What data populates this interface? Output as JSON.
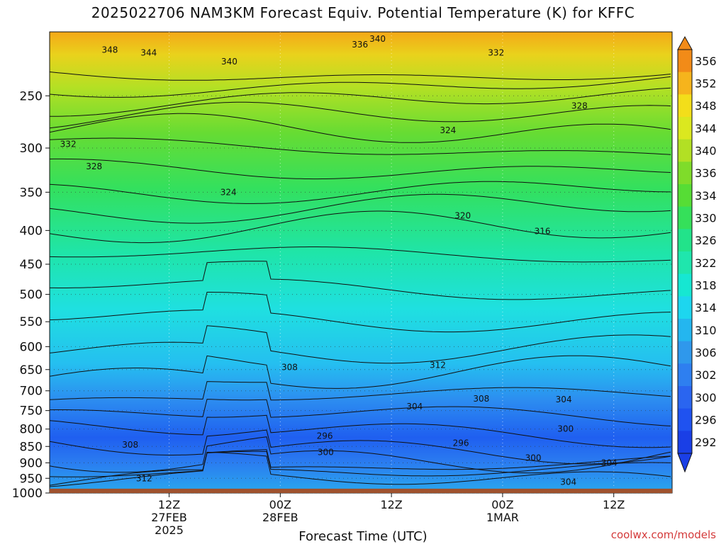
{
  "title": "2025022706 NAM3KM Forecast Equiv. Potential Temperature (K) for KFFC",
  "credit": "coolwx.com/models",
  "chart_data": {
    "type": "heatmap",
    "title": "2025022706 NAM3KM Forecast Equiv. Potential Temperature (K) for KFFC",
    "xlabel": "Forecast Time (UTC)",
    "ylabel": "",
    "y_log_pressure": true,
    "ylim": [
      1000,
      200
    ],
    "y_ticks": [
      250,
      300,
      350,
      400,
      450,
      500,
      550,
      600,
      650,
      700,
      750,
      800,
      850,
      900,
      950,
      1000
    ],
    "xlim_hours": [
      -6.9,
      60.3
    ],
    "x_ticks": [
      {
        "hour": 6,
        "lines": [
          "12Z",
          "27FEB",
          "2025"
        ]
      },
      {
        "hour": 18,
        "lines": [
          "00Z",
          "28FEB"
        ]
      },
      {
        "hour": 30,
        "lines": [
          "12Z"
        ]
      },
      {
        "hour": 42,
        "lines": [
          "00Z",
          "1MAR"
        ]
      },
      {
        "hour": 54,
        "lines": [
          "12Z"
        ]
      }
    ],
    "colorbar": {
      "labels": [
        292,
        296,
        300,
        302,
        306,
        310,
        314,
        318,
        322,
        326,
        330,
        334,
        336,
        340,
        344,
        348,
        352,
        356
      ],
      "colors": [
        "#1a3fe6",
        "#1f52f0",
        "#2a65f0",
        "#2e7ff0",
        "#2f98ec",
        "#24b6ef",
        "#1dd6ef",
        "#16e7d2",
        "#1fe6ad",
        "#22e38a",
        "#35e05a",
        "#56dd35",
        "#7fdc2a",
        "#b2e024",
        "#dbe81f",
        "#f3de1a",
        "#f6b41c",
        "#f28b18"
      ]
    },
    "contour_labels": [
      {
        "text": "348",
        "x": -0.4,
        "p": 213
      },
      {
        "text": "344",
        "x": 3.8,
        "p": 215
      },
      {
        "text": "340",
        "x": 12.5,
        "p": 222
      },
      {
        "text": "340",
        "x": 28.5,
        "p": 205
      },
      {
        "text": "336",
        "x": 26.6,
        "p": 209
      },
      {
        "text": "332",
        "x": 41.3,
        "p": 215
      },
      {
        "text": "328",
        "x": 50.3,
        "p": 259
      },
      {
        "text": "324",
        "x": 36.1,
        "p": 282
      },
      {
        "text": "332",
        "x": -4.9,
        "p": 296
      },
      {
        "text": "328",
        "x": -2.1,
        "p": 320
      },
      {
        "text": "324",
        "x": 12.4,
        "p": 350
      },
      {
        "text": "320",
        "x": 37.7,
        "p": 380
      },
      {
        "text": "316",
        "x": 46.3,
        "p": 401
      },
      {
        "text": "308",
        "x": 19.0,
        "p": 645
      },
      {
        "text": "312",
        "x": 35.0,
        "p": 640
      },
      {
        "text": "304",
        "x": 32.5,
        "p": 740
      },
      {
        "text": "308",
        "x": 39.7,
        "p": 720
      },
      {
        "text": "304",
        "x": 48.6,
        "p": 722
      },
      {
        "text": "300",
        "x": 48.8,
        "p": 800
      },
      {
        "text": "296",
        "x": 22.8,
        "p": 820
      },
      {
        "text": "296",
        "x": 37.5,
        "p": 840
      },
      {
        "text": "300",
        "x": 22.9,
        "p": 868
      },
      {
        "text": "300",
        "x": 45.3,
        "p": 885
      },
      {
        "text": "308",
        "x": 1.8,
        "p": 845
      },
      {
        "text": "304",
        "x": 53.5,
        "p": 900
      },
      {
        "text": "312",
        "x": 3.3,
        "p": 950
      },
      {
        "text": "304",
        "x": 49.1,
        "p": 962
      }
    ]
  }
}
